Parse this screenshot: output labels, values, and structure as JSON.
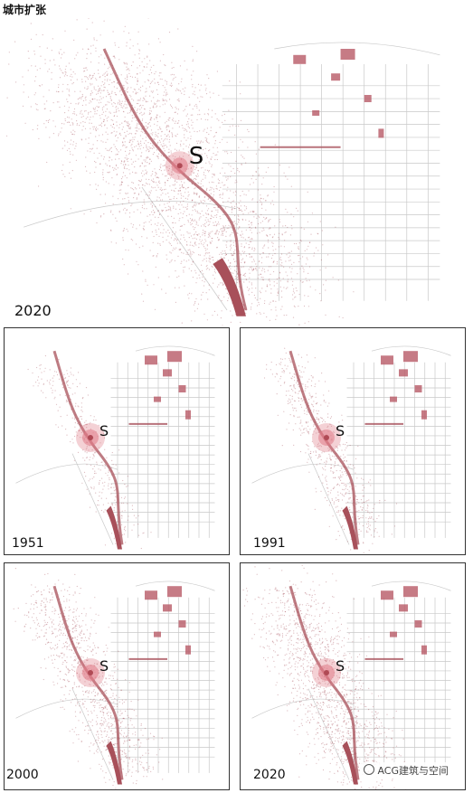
{
  "title": "城市扩张",
  "main": {
    "year": "2020",
    "site_label": "S"
  },
  "panels": [
    {
      "year": "1951",
      "site_label": "S",
      "density": 0.25
    },
    {
      "year": "1991",
      "site_label": "S",
      "density": 0.45
    },
    {
      "year": "2000",
      "site_label": "S",
      "density": 0.7
    },
    {
      "year": "2020",
      "site_label": "S",
      "density": 1.0
    }
  ],
  "watermark": "ACG建筑与空间",
  "colors": {
    "sprawl": "#9c3a44",
    "river": "#a8505a",
    "roads": "#c9c9c9",
    "site": "#e07a86",
    "buildings": "#b85a66"
  }
}
